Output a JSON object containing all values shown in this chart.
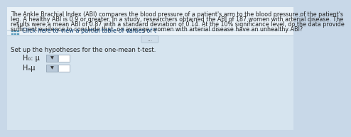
{
  "bg_color": "#c8d8e8",
  "panel_color": "#dce8f2",
  "text_color": "#222222",
  "main_text_lines": [
    "The Ankle Brachial Index (ABI) compares the blood pressure of a patient's arm to the blood pressure of the patient's",
    "leg. A healthy ABI is 0.9 or greater. In a study, researchers obtained the ABI of 187 women with arterial disease. The",
    "results were a mean ABI of 0.87 with a standard deviation of 0.14. At the 10% significance level, do the data provide",
    "sufficient evidence to conclude that, on average, women with arterial disease have an unhealthy ABI?"
  ],
  "link_text": "Click here to view a partial table of values of t",
  "link_subscript": "α",
  "dots_text": "…",
  "setup_text": "Set up the hypotheses for the one-mean t-test.",
  "h0_label": "H₀: μ",
  "ha_label": "Hₐμ",
  "icon_color": "#4a7fb5",
  "icon_bg": "#5b8ec4",
  "link_color": "#1a4a7a",
  "main_fontsize": 5.8,
  "link_fontsize": 5.9,
  "setup_fontsize": 6.2,
  "hyp_fontsize": 7.0,
  "divider_color": "#b0c4d4",
  "dropdown_color": "#b8c8d8",
  "dots_border": "#aabbcc",
  "dots_bg": "#cfdde9"
}
